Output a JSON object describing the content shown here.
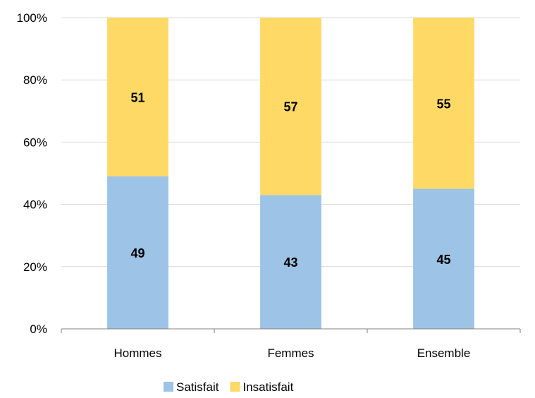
{
  "chart_data": {
    "type": "bar",
    "stacked": true,
    "categories": [
      "Hommes",
      "Femmes",
      "Ensemble"
    ],
    "series": [
      {
        "name": "Satisfait",
        "values": [
          49,
          43,
          45
        ],
        "color": "#9DC3E6"
      },
      {
        "name": "Insatisfait",
        "values": [
          51,
          57,
          55
        ],
        "color": "#FFD966"
      }
    ],
    "ylim": [
      0,
      100
    ],
    "yticks": [
      "0%",
      "20%",
      "40%",
      "60%",
      "80%",
      "100%"
    ],
    "grid": true,
    "legend_position": "bottom"
  }
}
